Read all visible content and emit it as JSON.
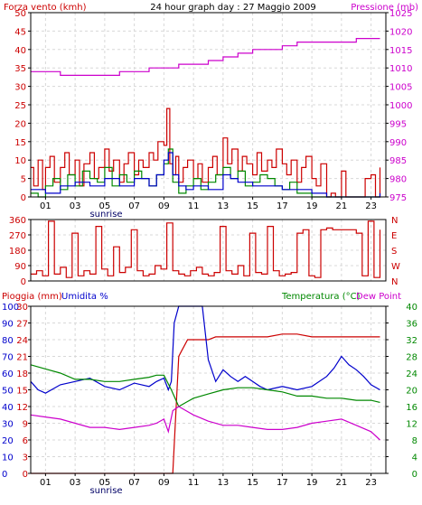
{
  "title": "24 hour graph day : 27 Maggio 2009",
  "x_ticks": [
    "01",
    "03",
    "05",
    "07",
    "09",
    "11",
    "13",
    "15",
    "17",
    "19",
    "21",
    "23"
  ],
  "sunrise_label": "sunrise",
  "colors": {
    "wind": "#cc0000",
    "gust": "#008800",
    "avg": "#0000cc",
    "pressure": "#cc00cc",
    "rain": "#cc0000",
    "humidity": "#0000cc",
    "temperature": "#008800",
    "dewpoint": "#cc00cc",
    "frame": "#000000",
    "grid": "#d8d8d8"
  },
  "chart_data": [
    {
      "type": "line",
      "label_left": "Forza vento (kmh)",
      "label_right": "Pressione (mb)",
      "ylim_left": [
        0,
        50
      ],
      "ylim_right": [
        975,
        1025
      ],
      "yticks_left": [
        0,
        5,
        10,
        15,
        20,
        25,
        30,
        35,
        40,
        45,
        50
      ],
      "yticks_right": [
        975,
        980,
        985,
        990,
        995,
        1000,
        1005,
        1010,
        1015,
        1020,
        1025
      ],
      "xlim": [
        0,
        24
      ],
      "grid": true,
      "series": [
        {
          "role": "wind",
          "axis": "left",
          "x": [
            0.0,
            0.2,
            0.5,
            0.8,
            1.0,
            1.3,
            1.6,
            2.0,
            2.3,
            2.6,
            3.0,
            3.3,
            3.6,
            4.0,
            4.3,
            4.6,
            5.0,
            5.3,
            5.6,
            6.0,
            6.3,
            6.6,
            7.0,
            7.3,
            7.6,
            8.0,
            8.3,
            8.6,
            9.0,
            9.2,
            9.4,
            9.6,
            9.8,
            10.0,
            10.3,
            10.6,
            11.0,
            11.3,
            11.6,
            12.0,
            12.3,
            12.6,
            13.0,
            13.3,
            13.6,
            14.0,
            14.3,
            14.6,
            15.0,
            15.3,
            15.6,
            16.0,
            16.3,
            16.6,
            17.0,
            17.3,
            17.6,
            18.0,
            18.3,
            18.6,
            19.0,
            19.3,
            19.6,
            20.0,
            20.3,
            20.6,
            21.0,
            21.3,
            21.6,
            22.0,
            22.3,
            22.6,
            23.0,
            23.3,
            23.6
          ],
          "y": [
            8,
            3,
            10,
            2,
            8,
            11,
            4,
            8,
            12,
            6,
            10,
            3,
            9,
            12,
            5,
            8,
            13,
            7,
            10,
            4,
            9,
            12,
            6,
            10,
            8,
            12,
            10,
            15,
            14,
            24,
            9,
            6,
            11,
            4,
            8,
            10,
            5,
            9,
            4,
            8,
            11,
            6,
            16,
            9,
            13,
            7,
            11,
            9,
            6,
            12,
            7,
            10,
            8,
            13,
            9,
            6,
            10,
            4,
            8,
            11,
            5,
            3,
            9,
            0,
            1,
            0,
            7,
            0,
            0,
            0,
            0,
            5,
            6,
            0,
            8
          ]
        },
        {
          "role": "gust",
          "axis": "left",
          "x": [
            0.0,
            0.5,
            1.0,
            1.5,
            2.0,
            2.5,
            3.0,
            3.5,
            4.0,
            4.5,
            5.0,
            5.5,
            6.0,
            6.5,
            7.0,
            7.5,
            8.0,
            8.5,
            9.0,
            9.3,
            9.6,
            10.0,
            10.5,
            11.0,
            11.5,
            12.0,
            12.5,
            13.0,
            13.5,
            14.0,
            14.5,
            15.0,
            15.5,
            16.0,
            16.5,
            17.0,
            17.5,
            18.0,
            19.0,
            20.0,
            21.0,
            22.0,
            23.0,
            23.6
          ],
          "y": [
            1,
            0,
            3,
            5,
            2,
            6,
            3,
            7,
            5,
            4,
            8,
            3,
            6,
            4,
            7,
            5,
            3,
            6,
            9,
            13,
            4,
            1,
            3,
            5,
            2,
            4,
            6,
            8,
            5,
            7,
            3,
            4,
            6,
            5,
            3,
            2,
            4,
            1,
            0,
            0,
            0,
            0,
            0,
            0
          ]
        },
        {
          "role": "avg",
          "axis": "left",
          "x": [
            0.0,
            1.0,
            2.0,
            3.0,
            4.0,
            5.0,
            6.0,
            7.0,
            8.0,
            8.5,
            9.0,
            9.3,
            9.6,
            10.0,
            10.5,
            11.0,
            12.0,
            13.0,
            13.5,
            14.0,
            15.0,
            16.0,
            17.0,
            18.0,
            19.0,
            20.0,
            21.0,
            22.0,
            23.0,
            23.6
          ],
          "y": [
            2,
            1,
            3,
            4,
            3,
            5,
            3,
            5,
            3,
            6,
            10,
            12,
            6,
            3,
            2,
            3,
            2,
            6,
            5,
            4,
            3,
            3,
            2,
            2,
            1,
            0,
            0,
            0,
            0,
            1
          ]
        },
        {
          "role": "pressure",
          "axis": "right",
          "x": [
            0.0,
            1.0,
            1.5,
            2.0,
            2.5,
            3.0,
            4.0,
            5.0,
            6.0,
            7.0,
            8.0,
            9.0,
            10.0,
            11.0,
            12.0,
            13.0,
            14.0,
            15.0,
            16.0,
            17.0,
            18.0,
            19.0,
            20.0,
            21.0,
            22.0,
            23.0,
            23.6
          ],
          "y": [
            1009,
            1009,
            1009,
            1008,
            1008,
            1008,
            1008,
            1008,
            1009,
            1009,
            1010,
            1010,
            1011,
            1011,
            1012,
            1013,
            1014,
            1015,
            1015,
            1016,
            1017,
            1017,
            1017,
            1017,
            1018,
            1018,
            1018
          ]
        }
      ]
    },
    {
      "type": "scatter",
      "label_right_ticks": [
        "N",
        "W",
        "S",
        "E",
        "N"
      ],
      "ylim": [
        0,
        360
      ],
      "yticks": [
        0,
        90,
        180,
        270,
        360
      ],
      "xlim": [
        0,
        24
      ],
      "grid": true,
      "series": [
        {
          "role": "wind_direction",
          "x": [
            0.0,
            0.4,
            0.8,
            1.2,
            1.6,
            2.0,
            2.4,
            2.8,
            3.2,
            3.6,
            4.0,
            4.4,
            4.8,
            5.2,
            5.6,
            6.0,
            6.4,
            6.8,
            7.2,
            7.6,
            8.0,
            8.4,
            8.8,
            9.2,
            9.6,
            10.0,
            10.4,
            10.8,
            11.2,
            11.6,
            12.0,
            12.4,
            12.8,
            13.2,
            13.6,
            14.0,
            14.4,
            14.8,
            15.2,
            15.6,
            16.0,
            16.4,
            16.8,
            17.2,
            17.6,
            18.0,
            18.4,
            18.8,
            19.2,
            19.6,
            20.0,
            20.4,
            20.8,
            21.2,
            21.6,
            22.0,
            22.4,
            22.8,
            23.2,
            23.6
          ],
          "y": [
            40,
            60,
            30,
            350,
            40,
            80,
            20,
            280,
            30,
            60,
            40,
            320,
            70,
            30,
            200,
            50,
            80,
            300,
            60,
            30,
            40,
            90,
            70,
            340,
            60,
            40,
            30,
            60,
            80,
            40,
            30,
            50,
            320,
            60,
            40,
            90,
            30,
            280,
            50,
            40,
            320,
            60,
            30,
            40,
            50,
            280,
            300,
            30,
            20,
            300,
            310,
            300,
            300,
            300,
            300,
            280,
            30,
            350,
            20,
            300
          ]
        }
      ]
    },
    {
      "type": "line",
      "label_left_1": "Pioggia (mm)",
      "label_left_2": "Umidita %",
      "label_right_1": "Temperatura (°C)",
      "label_right_2": "Dew Point",
      "yticks_rain": [
        0,
        3,
        6,
        9,
        12,
        15,
        18,
        21,
        24,
        27,
        30
      ],
      "yticks_humidity": [
        0,
        10,
        20,
        30,
        40,
        50,
        60,
        70,
        80,
        90,
        100
      ],
      "yticks_temp": [
        0,
        4,
        8,
        12,
        16,
        20,
        24,
        28,
        32,
        36,
        40
      ],
      "ylim_humidity": [
        0,
        100
      ],
      "ylim_temp": [
        0,
        40
      ],
      "ylim_rain": [
        0,
        30
      ],
      "xlim": [
        0,
        24
      ],
      "grid": true,
      "series": [
        {
          "role": "rain",
          "axis": "rain",
          "x": [
            0.0,
            9.0,
            9.6,
            10.0,
            10.2,
            10.4,
            10.6,
            11.0,
            12.0,
            12.5,
            15.0,
            15.5,
            16.0,
            17.0,
            17.5,
            18.0,
            19.0,
            20.0,
            21.0,
            22.0,
            23.0,
            23.6
          ],
          "y": [
            0,
            0,
            0,
            21,
            22,
            23,
            24,
            24,
            24,
            24.5,
            24.5,
            24.5,
            24.5,
            25,
            25,
            25,
            24.5,
            24.5,
            24.5,
            24.5,
            24.5,
            24.5
          ]
        },
        {
          "role": "humidity",
          "axis": "humidity",
          "x": [
            0.0,
            0.5,
            1.0,
            2.0,
            3.0,
            4.0,
            5.0,
            6.0,
            7.0,
            8.0,
            8.5,
            9.0,
            9.3,
            9.5,
            9.7,
            10.0,
            10.5,
            11.0,
            11.3,
            11.6,
            12.0,
            12.5,
            13.0,
            13.5,
            14.0,
            14.5,
            15.0,
            15.5,
            16.0,
            17.0,
            18.0,
            19.0,
            20.0,
            20.5,
            21.0,
            21.5,
            22.0,
            22.5,
            23.0,
            23.6
          ],
          "y": [
            55,
            50,
            48,
            53,
            55,
            57,
            52,
            50,
            54,
            52,
            55,
            57,
            50,
            55,
            90,
            100,
            100,
            100,
            100,
            100,
            68,
            55,
            62,
            58,
            55,
            58,
            55,
            52,
            50,
            52,
            50,
            52,
            58,
            63,
            70,
            65,
            62,
            58,
            53,
            50
          ]
        },
        {
          "role": "temperature",
          "axis": "temp",
          "x": [
            0.0,
            1.0,
            2.0,
            3.0,
            4.0,
            5.0,
            6.0,
            7.0,
            8.0,
            8.5,
            9.0,
            9.5,
            10.0,
            10.5,
            11.0,
            12.0,
            13.0,
            14.0,
            15.0,
            16.0,
            17.0,
            18.0,
            19.0,
            20.0,
            21.0,
            22.0,
            23.0,
            23.6
          ],
          "y": [
            26,
            25,
            24,
            22.5,
            22.5,
            22,
            22,
            22.5,
            23,
            23.5,
            23.5,
            20,
            16,
            17,
            18,
            19,
            20,
            20.5,
            20.5,
            20,
            19.5,
            18.5,
            18.5,
            18,
            18,
            17.5,
            17.5,
            17
          ]
        },
        {
          "role": "dewpoint",
          "axis": "temp",
          "x": [
            0.0,
            1.0,
            2.0,
            3.0,
            4.0,
            5.0,
            6.0,
            7.0,
            8.0,
            8.5,
            9.0,
            9.3,
            9.6,
            10.0,
            10.5,
            11.0,
            12.0,
            13.0,
            14.0,
            15.0,
            16.0,
            17.0,
            18.0,
            19.0,
            20.0,
            21.0,
            22.0,
            23.0,
            23.6
          ],
          "y": [
            14,
            13.5,
            13,
            12,
            11,
            11,
            10.5,
            11,
            11.5,
            12,
            13,
            10,
            15,
            16,
            15,
            14,
            12.5,
            11.5,
            11.5,
            11,
            10.5,
            10.5,
            11,
            12,
            12.5,
            13,
            11.5,
            10,
            8
          ]
        }
      ]
    }
  ]
}
